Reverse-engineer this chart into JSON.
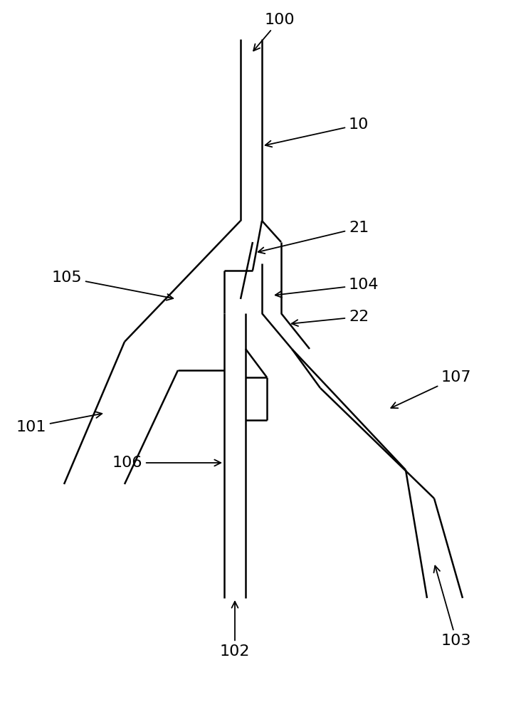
{
  "bg_color": "#ffffff",
  "line_color": "#000000",
  "line_width": 1.8,
  "font_size": 16,
  "figsize": [
    7.25,
    10.0
  ],
  "dpi": 100
}
